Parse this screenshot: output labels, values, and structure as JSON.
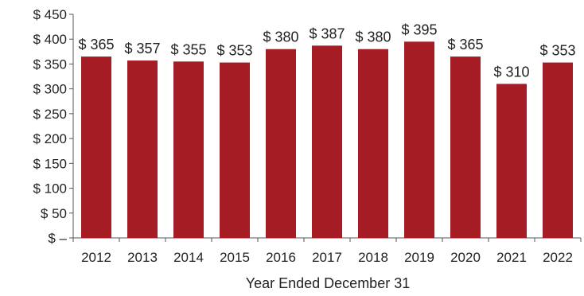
{
  "chart_data": {
    "type": "bar",
    "title": "",
    "xlabel": "Year Ended December 31",
    "ylabel": "",
    "categories": [
      "2012",
      "2013",
      "2014",
      "2015",
      "2016",
      "2017",
      "2018",
      "2019",
      "2020",
      "2021",
      "2022"
    ],
    "values": [
      365,
      357,
      355,
      353,
      380,
      387,
      380,
      395,
      365,
      310,
      353
    ],
    "data_labels": [
      "$ 365",
      "$ 357",
      "$ 355",
      "$ 353",
      "$ 380",
      "$ 387",
      "$ 380",
      "$ 395",
      "$ 365",
      "$ 310",
      "$ 353"
    ],
    "ylim": [
      0,
      450
    ],
    "yticks": [
      0,
      50,
      100,
      150,
      200,
      250,
      300,
      350,
      400,
      450
    ],
    "ytick_labels": [
      "$ –",
      "$ 50",
      "$ 100",
      "$ 150",
      "$ 200",
      "$ 250",
      "$ 300",
      "$ 350",
      "$ 400",
      "$ 450"
    ],
    "bar_color": "#A51C24",
    "grid": false,
    "legend": "none"
  }
}
